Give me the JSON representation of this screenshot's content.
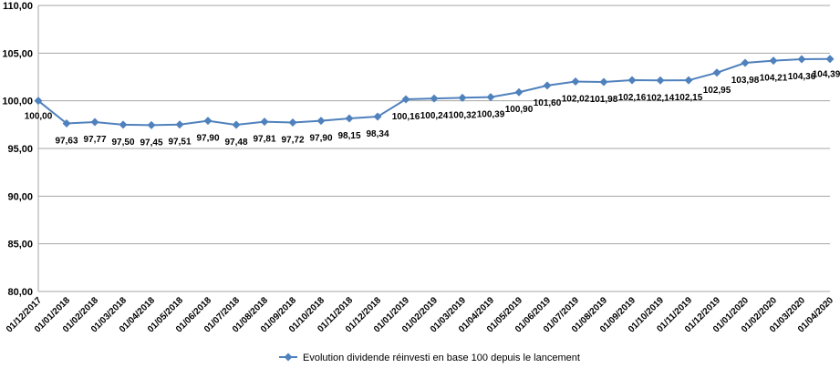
{
  "chart_data": {
    "type": "line",
    "title": "",
    "xlabel": "",
    "ylabel": "",
    "ylim": [
      80,
      110
    ],
    "yticks": [
      "80,00",
      "85,00",
      "90,00",
      "95,00",
      "100,00",
      "105,00",
      "110,00"
    ],
    "grid": "horizontal",
    "legend_position": "bottom",
    "line_color": "#4f81bd",
    "categories": [
      "01/12/2017",
      "01/01/2018",
      "01/02/2018",
      "01/03/2018",
      "01/04/2018",
      "01/05/2018",
      "01/06/2018",
      "01/07/2018",
      "01/08/2018",
      "01/09/2018",
      "01/10/2018",
      "01/11/2018",
      "01/12/2018",
      "01/01/2019",
      "01/02/2019",
      "01/03/2019",
      "01/04/2019",
      "01/05/2019",
      "01/06/2019",
      "01/07/2019",
      "01/08/2019",
      "01/09/2019",
      "01/10/2019",
      "01/11/2019",
      "01/12/2019",
      "01/01/2020",
      "01/02/2020",
      "01/03/2020",
      "01/04/2020"
    ],
    "series": [
      {
        "name": "Evolution dividende réinvesti en base 100 depuis le lancement",
        "values": [
          100.0,
          97.63,
          97.77,
          97.5,
          97.45,
          97.51,
          97.9,
          97.48,
          97.81,
          97.72,
          97.9,
          98.15,
          98.34,
          100.16,
          100.24,
          100.32,
          100.39,
          100.9,
          101.6,
          102.02,
          101.98,
          102.16,
          102.14,
          102.15,
          102.95,
          103.98,
          104.21,
          104.36,
          104.39
        ],
        "labels": [
          "100,00",
          "97,63",
          "97,77",
          "97,50",
          "97,45",
          "97,51",
          "97,90",
          "97,48",
          "97,81",
          "97,72",
          "97,90",
          "98,15",
          "98,34",
          "100,16",
          "100,24",
          "100,32",
          "100,39",
          "100,90",
          "101,60",
          "102,02",
          "101,98",
          "102,16",
          "102,14",
          "102,15",
          "102,95",
          "103,98",
          "104,21",
          "104,36",
          "104,39"
        ]
      }
    ]
  }
}
